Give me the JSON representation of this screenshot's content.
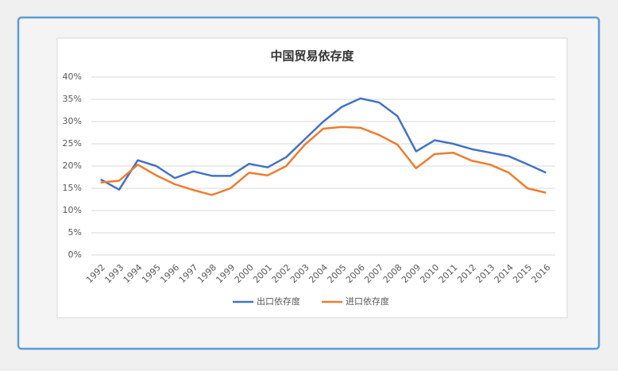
{
  "chart_data": {
    "type": "line",
    "title": "中国贸易依存度",
    "categories": [
      "1992",
      "1993",
      "1994",
      "1995",
      "1996",
      "1997",
      "1998",
      "1999",
      "2000",
      "2001",
      "2002",
      "2003",
      "2004",
      "2005",
      "2006",
      "2007",
      "2008",
      "2009",
      "2010",
      "2011",
      "2012",
      "2013",
      "2014",
      "2015",
      "2016"
    ],
    "series": [
      {
        "name": "出口依存度",
        "color": "#4472c4",
        "values": [
          17,
          14.7,
          21.3,
          20,
          17.3,
          18.8,
          17.8,
          17.8,
          20.5,
          19.7,
          22,
          26,
          30,
          33.3,
          35.2,
          34.3,
          31.2,
          23.3,
          25.8,
          25,
          23.8,
          23,
          22.2,
          20.4,
          18.5
        ]
      },
      {
        "name": "进口依存度",
        "color": "#ed7d31",
        "values": [
          16.3,
          16.7,
          20.3,
          17.9,
          15.9,
          14.6,
          13.5,
          15,
          18.5,
          17.9,
          20,
          24.8,
          28.4,
          28.8,
          28.6,
          27,
          24.8,
          19.5,
          22.7,
          23,
          21.2,
          20.3,
          18.5,
          15,
          14
        ]
      }
    ],
    "ylim": [
      0,
      40
    ],
    "yticks": [
      {
        "value": 0,
        "label": "0%"
      },
      {
        "value": 5,
        "label": "5%"
      },
      {
        "value": 10,
        "label": "10%"
      },
      {
        "value": 15,
        "label": "15%"
      },
      {
        "value": 20,
        "label": "20%"
      },
      {
        "value": 25,
        "label": "25%"
      },
      {
        "value": 30,
        "label": "30%"
      },
      {
        "value": 35,
        "label": "35%"
      },
      {
        "value": 40,
        "label": "40%"
      }
    ],
    "grid": true,
    "legend": "bottom"
  }
}
